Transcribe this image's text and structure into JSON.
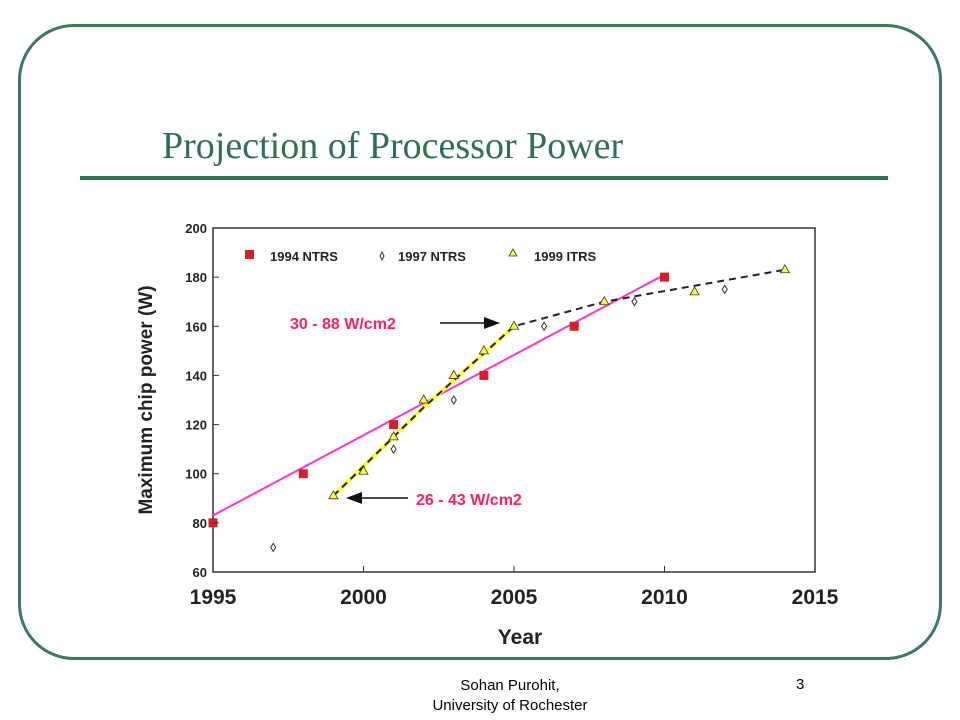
{
  "slide": {
    "title": "Projection of Processor Power",
    "footer_author_line1": "Sohan Purohit,",
    "footer_author_line2": "University of Rochester",
    "page_number": "3"
  },
  "colors": {
    "frame": "#3c7a5e",
    "title": "#2f6f52",
    "ntrs_1994": "#d4202a",
    "trend_1994": "#ff33cc",
    "ntrs_1997": "#333333",
    "itrs_1999": "#ffff33",
    "annotation": "#ff1f5a"
  },
  "chart_data": {
    "type": "scatter",
    "title": "",
    "xlabel": "Year",
    "ylabel": "Maximum chip power (W)",
    "xlim": [
      1995,
      2015
    ],
    "ylim": [
      60,
      200
    ],
    "x_ticks": [
      "1995",
      "2000",
      "2005",
      "2010",
      "2015"
    ],
    "y_ticks": [
      "60",
      "80",
      "100",
      "120",
      "140",
      "160",
      "180",
      "200"
    ],
    "grid": false,
    "legend_position": "top",
    "series": [
      {
        "name": "1994 NTRS",
        "marker": "square",
        "color": "#d4202a",
        "points": [
          [
            1995,
            80
          ],
          [
            1998,
            100
          ],
          [
            2001,
            120
          ],
          [
            2004,
            140
          ],
          [
            2007,
            160
          ],
          [
            2010,
            180
          ]
        ],
        "trendline": [
          [
            1995,
            83
          ],
          [
            2010,
            181
          ]
        ]
      },
      {
        "name": "1997 NTRS",
        "marker": "diamond",
        "color": "#333333",
        "points": [
          [
            1997,
            70
          ],
          [
            2001,
            110
          ],
          [
            2003,
            130
          ],
          [
            2006,
            160
          ],
          [
            2009,
            170
          ],
          [
            2012,
            175
          ]
        ],
        "trendline": [
          [
            1999,
            91
          ],
          [
            2002,
            127
          ],
          [
            2005,
            160
          ],
          [
            2008,
            170
          ],
          [
            2014,
            183
          ]
        ]
      },
      {
        "name": "1999 ITRS",
        "marker": "triangle",
        "color": "#ffff33",
        "points": [
          [
            1999,
            91
          ],
          [
            2000,
            101
          ],
          [
            2001,
            115
          ],
          [
            2002,
            130
          ],
          [
            2003,
            140
          ],
          [
            2004,
            150
          ],
          [
            2005,
            160
          ],
          [
            2008,
            170
          ],
          [
            2011,
            174
          ],
          [
            2014,
            183
          ]
        ]
      }
    ],
    "annotations": [
      {
        "text": "30 - 88 W/cm2",
        "points_to": [
          2005,
          160
        ]
      },
      {
        "text": "26 - 43 W/cm2",
        "points_to": [
          1999,
          91
        ]
      }
    ]
  }
}
